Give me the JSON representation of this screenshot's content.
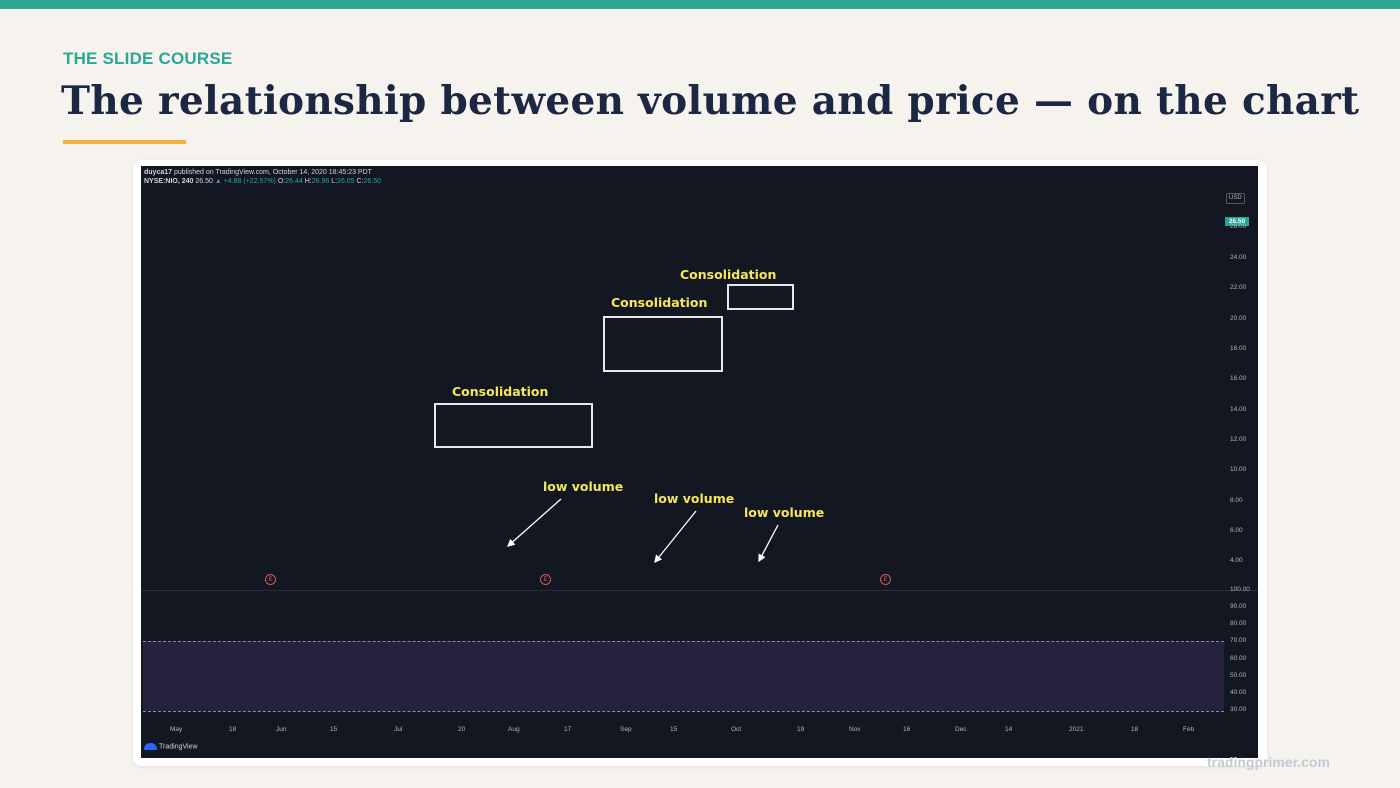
{
  "eyebrow": "THE SLIDE COURSE",
  "title": "The relationship between volume and price — on the chart",
  "watermark": "tradingprimer.com",
  "chart": {
    "publisher": "duyca17",
    "published_text": "published on TradingView.com, October 14, 2020 18:45:23 PDT",
    "symbol": "NYSE:NIO, 240",
    "last": "26.50",
    "change": "▲ +4.88 (+22.57%)",
    "o_label": "O:",
    "o_value": "26.44",
    "h_label": "H:",
    "h_value": "26.96",
    "l_label": "L:",
    "l_value": "26.05",
    "c_label": "C:",
    "c_value": "26.50",
    "currency": "USD",
    "last_price_tag": "26.50",
    "price_labels": [
      "26.00",
      "24.00",
      "22.00",
      "20.00",
      "18.00",
      "16.00",
      "14.00",
      "12.00",
      "10.00",
      "8.00",
      "6.00",
      "4.00"
    ],
    "rsi_labels": [
      "100.00",
      "90.00",
      "80.00",
      "70.00",
      "60.00",
      "50.00",
      "40.00",
      "30.00"
    ],
    "time_labels": [
      "May",
      "18",
      "Jun",
      "15",
      "Jul",
      "20",
      "Aug",
      "17",
      "Sep",
      "15",
      "Oct",
      "19",
      "Nov",
      "16",
      "Dec",
      "14",
      "2021",
      "18",
      "Feb"
    ],
    "earnings_marker": "E",
    "logo_text": "TradingView"
  },
  "annotations": {
    "consolidation_1": "Consolidation",
    "consolidation_2": "Consolidation",
    "consolidation_3": "Consolidation",
    "low_volume_1": "low volume",
    "low_volume_2": "low volume",
    "low_volume_3": "low volume"
  }
}
